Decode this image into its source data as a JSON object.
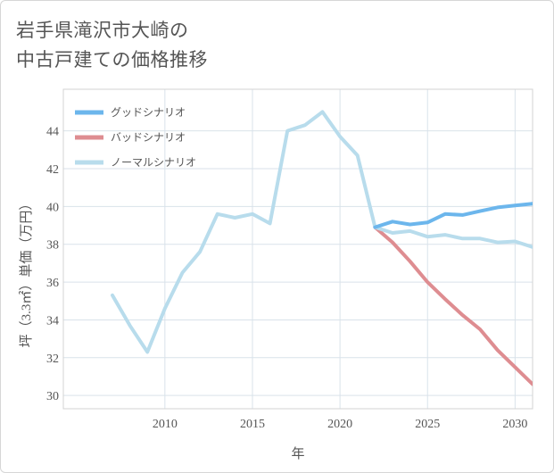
{
  "page": {
    "title_line1": "岩手県滝沢市大崎の",
    "title_line2": "中古戸建ての価格推移"
  },
  "chart_data": {
    "type": "line",
    "title": "岩手県滝沢市大崎の中古戸建ての価格推移",
    "xlabel": "年",
    "ylabel": "坪（3.3㎡）単価（万円）",
    "xlim": [
      2004.2,
      2031
    ],
    "ylim": [
      29.3,
      46.2
    ],
    "xticks": [
      2010,
      2015,
      2020,
      2025,
      2030
    ],
    "yticks": [
      30,
      32,
      34,
      36,
      38,
      40,
      42,
      44
    ],
    "grid": true,
    "legend_position": "top-left",
    "series": [
      {
        "name": "グッドシナリオ",
        "color": "#6cb6ec",
        "x": [
          2022,
          2023,
          2024,
          2025,
          2026,
          2027,
          2028,
          2029,
          2030,
          2031
        ],
        "values": [
          38.9,
          39.2,
          39.05,
          39.15,
          39.6,
          39.55,
          39.75,
          39.95,
          40.05,
          40.15
        ]
      },
      {
        "name": "バッドシナリオ",
        "color": "#de8d91",
        "x": [
          2022,
          2023,
          2024,
          2025,
          2026,
          2027,
          2028,
          2029,
          2030,
          2031
        ],
        "values": [
          38.9,
          38.1,
          37.1,
          36.0,
          35.1,
          34.25,
          33.5,
          32.4,
          31.5,
          30.6
        ]
      },
      {
        "name": "ノーマルシナリオ",
        "color": "#b8dcec",
        "x": [
          2007,
          2008,
          2009,
          2010,
          2011,
          2012,
          2013,
          2014,
          2015,
          2016,
          2017,
          2018,
          2019,
          2020,
          2021,
          2022,
          2023,
          2024,
          2025,
          2026,
          2027,
          2028,
          2029,
          2030,
          2031
        ],
        "values": [
          35.3,
          33.7,
          32.3,
          34.6,
          36.5,
          37.6,
          39.6,
          39.4,
          39.6,
          39.1,
          44.0,
          44.3,
          45.0,
          43.7,
          42.7,
          38.9,
          38.6,
          38.7,
          38.4,
          38.5,
          38.3,
          38.3,
          38.1,
          38.15,
          37.85
        ]
      }
    ]
  }
}
